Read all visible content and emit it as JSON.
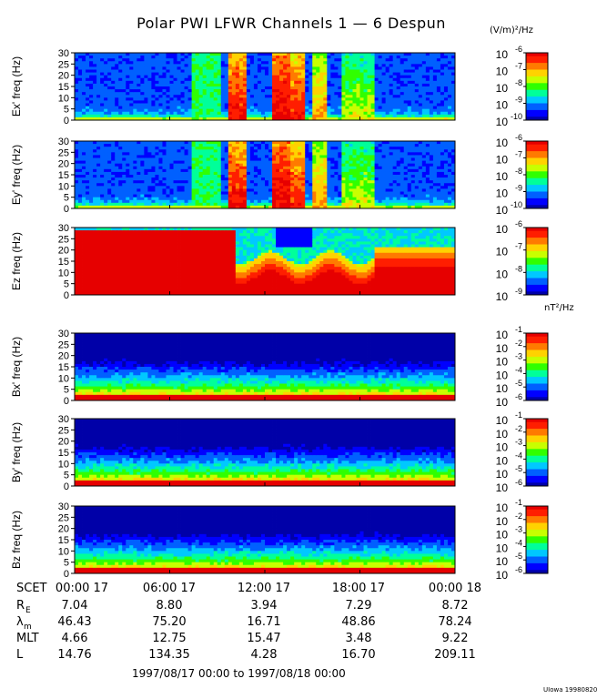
{
  "title": "Polar PWI LFWR Channels 1 — 6 Despun",
  "units_electric": "(V/m)²/Hz",
  "units_magnetic": "nT²/Hz",
  "credit": "UIowa 19980820",
  "date_range": "1997/08/17 00:00 to 1997/08/18 00:00",
  "x_ticks": [
    "00:00 17",
    "06:00 17",
    "12:00 17",
    "18:00 17",
    "00:00 18"
  ],
  "orbit_rows": [
    {
      "label": "SCET",
      "values": [
        "00:00 17",
        "06:00 17",
        "12:00 17",
        "18:00 17",
        "00:00 18"
      ]
    },
    {
      "label": "R",
      "sub": "E",
      "values": [
        "7.04",
        "8.80",
        "3.94",
        "7.29",
        "8.72"
      ]
    },
    {
      "label": "λ",
      "sub": "m",
      "values": [
        "46.43",
        "75.20",
        "16.71",
        "48.86",
        "78.24"
      ]
    },
    {
      "label": "MLT",
      "values": [
        "4.66",
        "12.75",
        "15.47",
        "3.48",
        "9.22"
      ]
    },
    {
      "label": "L",
      "values": [
        "14.76",
        "134.35",
        "4.28",
        "16.70",
        "209.11"
      ]
    }
  ],
  "colors": {
    "scale": [
      "#0000a8",
      "#0000ff",
      "#0060ff",
      "#00c8ff",
      "#00ff9a",
      "#30ff00",
      "#c8ff00",
      "#ffd200",
      "#ff7a00",
      "#ff1e00",
      "#e60000"
    ],
    "background": "#ffffff"
  },
  "chart_data": [
    {
      "type": "heatmap",
      "ylabel": "Ex' freq (Hz)",
      "yticks": [
        "0",
        "5",
        "10",
        "15",
        "20",
        "25",
        "30"
      ],
      "ylim": [
        0,
        30
      ],
      "colorbar": {
        "min_exp": -10,
        "max_exp": -6,
        "ticks": [
          "10",
          "10",
          "10",
          "10",
          "10"
        ],
        "exps": [
          "-10",
          "-9",
          "-8",
          "-7",
          "-6"
        ]
      }
    },
    {
      "type": "heatmap",
      "ylabel": "Ey' freq (Hz)",
      "yticks": [
        "0",
        "5",
        "10",
        "15",
        "20",
        "25",
        "30"
      ],
      "ylim": [
        0,
        30
      ],
      "colorbar": {
        "min_exp": -10,
        "max_exp": -6,
        "ticks": [
          "10",
          "10",
          "10",
          "10",
          "10"
        ],
        "exps": [
          "-10",
          "-9",
          "-8",
          "-7",
          "-6"
        ]
      }
    },
    {
      "type": "heatmap",
      "ylabel": "Ez freq (Hz)",
      "yticks": [
        "0",
        "5",
        "10",
        "15",
        "20",
        "25",
        "30"
      ],
      "ylim": [
        0,
        30
      ],
      "colorbar": {
        "min_exp": -9,
        "max_exp": -6,
        "ticks": [
          "10",
          "10",
          "10",
          "10"
        ],
        "exps": [
          "-9",
          "-8",
          "-7",
          "-6"
        ]
      }
    },
    {
      "type": "heatmap",
      "ylabel": "Bx' freq (Hz)",
      "yticks": [
        "0",
        "5",
        "10",
        "15",
        "20",
        "25",
        "30"
      ],
      "ylim": [
        0,
        30
      ],
      "colorbar": {
        "min_exp": -6,
        "max_exp": -1,
        "ticks": [
          "10",
          "10",
          "10",
          "10",
          "10",
          "10"
        ],
        "exps": [
          "-6",
          "-5",
          "-4",
          "-3",
          "-2",
          "-1"
        ]
      }
    },
    {
      "type": "heatmap",
      "ylabel": "By' freq (Hz)",
      "yticks": [
        "0",
        "5",
        "10",
        "15",
        "20",
        "25",
        "30"
      ],
      "ylim": [
        0,
        30
      ],
      "colorbar": {
        "min_exp": -6,
        "max_exp": -1,
        "ticks": [
          "10",
          "10",
          "10",
          "10",
          "10",
          "10"
        ],
        "exps": [
          "-6",
          "-5",
          "-4",
          "-3",
          "-2",
          "-1"
        ]
      }
    },
    {
      "type": "heatmap",
      "ylabel": "Bz freq (Hz)",
      "yticks": [
        "0",
        "5",
        "10",
        "15",
        "20",
        "25",
        "30"
      ],
      "ylim": [
        0,
        30
      ],
      "colorbar": {
        "min_exp": -6,
        "max_exp": -1,
        "ticks": [
          "10",
          "10",
          "10",
          "10",
          "10",
          "10"
        ],
        "exps": [
          "-6",
          "-5",
          "-4",
          "-3",
          "-2",
          "-1"
        ]
      }
    }
  ]
}
